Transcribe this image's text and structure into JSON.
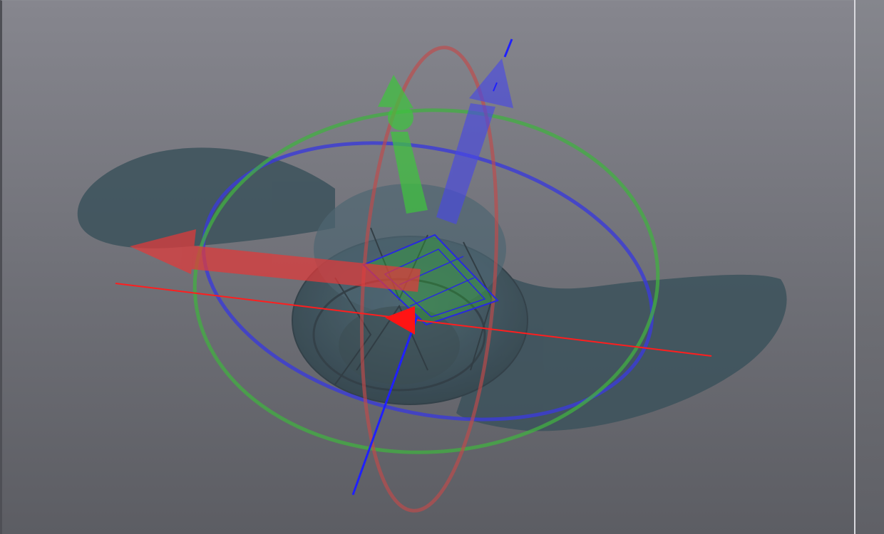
{
  "viewport": {
    "background_top": "#86868e",
    "background_bottom": "#5c5d63"
  },
  "model": {
    "color": "#3d535d"
  },
  "gizmo": {
    "x_axis_color": "#ff1e1e",
    "y_axis_color": "#3fd03f",
    "z_axis_color": "#2828ff",
    "icons": [
      "translate-x-arrow",
      "translate-y-arrow",
      "translate-z-arrow",
      "rotate-x-ring",
      "rotate-y-ring",
      "rotate-z-ring",
      "plane-handle"
    ]
  },
  "panel": {
    "color": "#74757b"
  }
}
